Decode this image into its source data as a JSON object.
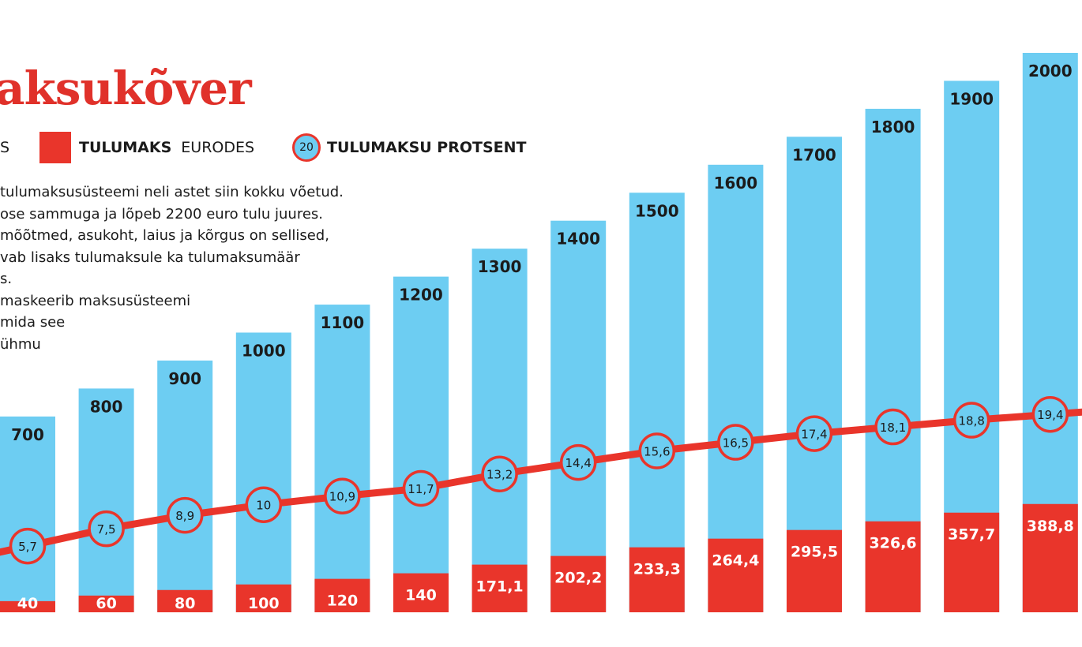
{
  "title": "aksukõver",
  "legend": {
    "blue_tail": "S",
    "red_bold": "TULUMAKS",
    "red_rest": " EURODES",
    "circle_sample": "20",
    "circle_label": "TULUMAKSU PROTSENT"
  },
  "note_lines": [
    "tulumaksusüsteemi neli astet siin kokku võetud.",
    "ose sammuga ja lõpeb 2200 euro tulu juures.",
    "mõõtmed, asukoht, laius ja kõrgus on sellised,",
    "vab lisaks tulumaksule ka tulumaksumäär",
    "s.",
    "maskeerib maksusüsteemi",
    "mida see",
    "ühmu"
  ],
  "colors": {
    "blue": "#6dcdf2",
    "red": "#e9352b",
    "title": "#e0312a"
  },
  "chart_data": {
    "type": "bar",
    "categories": [
      "700",
      "800",
      "900",
      "1000",
      "1100",
      "1200",
      "1300",
      "1400",
      "1500",
      "1600",
      "1700",
      "1800",
      "1900",
      "2000"
    ],
    "series": [
      {
        "values": [
          700,
          800,
          900,
          1000,
          1100,
          1200,
          1300,
          1400,
          1500,
          1600,
          1700,
          1800,
          1900,
          2000
        ]
      },
      {
        "name": "TULUMAKS EURODES",
        "values": [
          40,
          60,
          80,
          100,
          120,
          140,
          171.1,
          202.2,
          233.3,
          264.4,
          295.5,
          326.6,
          357.7,
          388.8
        ]
      },
      {
        "name": "TULUMAKSU PROTSENT",
        "type": "line",
        "values": [
          5.7,
          7.5,
          8.9,
          10,
          10.9,
          11.7,
          13.2,
          14.4,
          15.6,
          16.5,
          17.4,
          18.1,
          18.8,
          19.4
        ]
      }
    ],
    "value_labels": {
      "tax": [
        "40",
        "60",
        "80",
        "100",
        "120",
        "140",
        "171,1",
        "202,2",
        "233,3",
        "264,4",
        "295,5",
        "326,6",
        "357,7",
        "388,8"
      ],
      "pct": [
        "5,7",
        "7,5",
        "8,9",
        "10",
        "10,9",
        "11,7",
        "13,2",
        "14,4",
        "15,6",
        "16,5",
        "17,4",
        "18,1",
        "18,8",
        "19,4"
      ]
    },
    "grid": false,
    "legend_position": "top-left"
  }
}
